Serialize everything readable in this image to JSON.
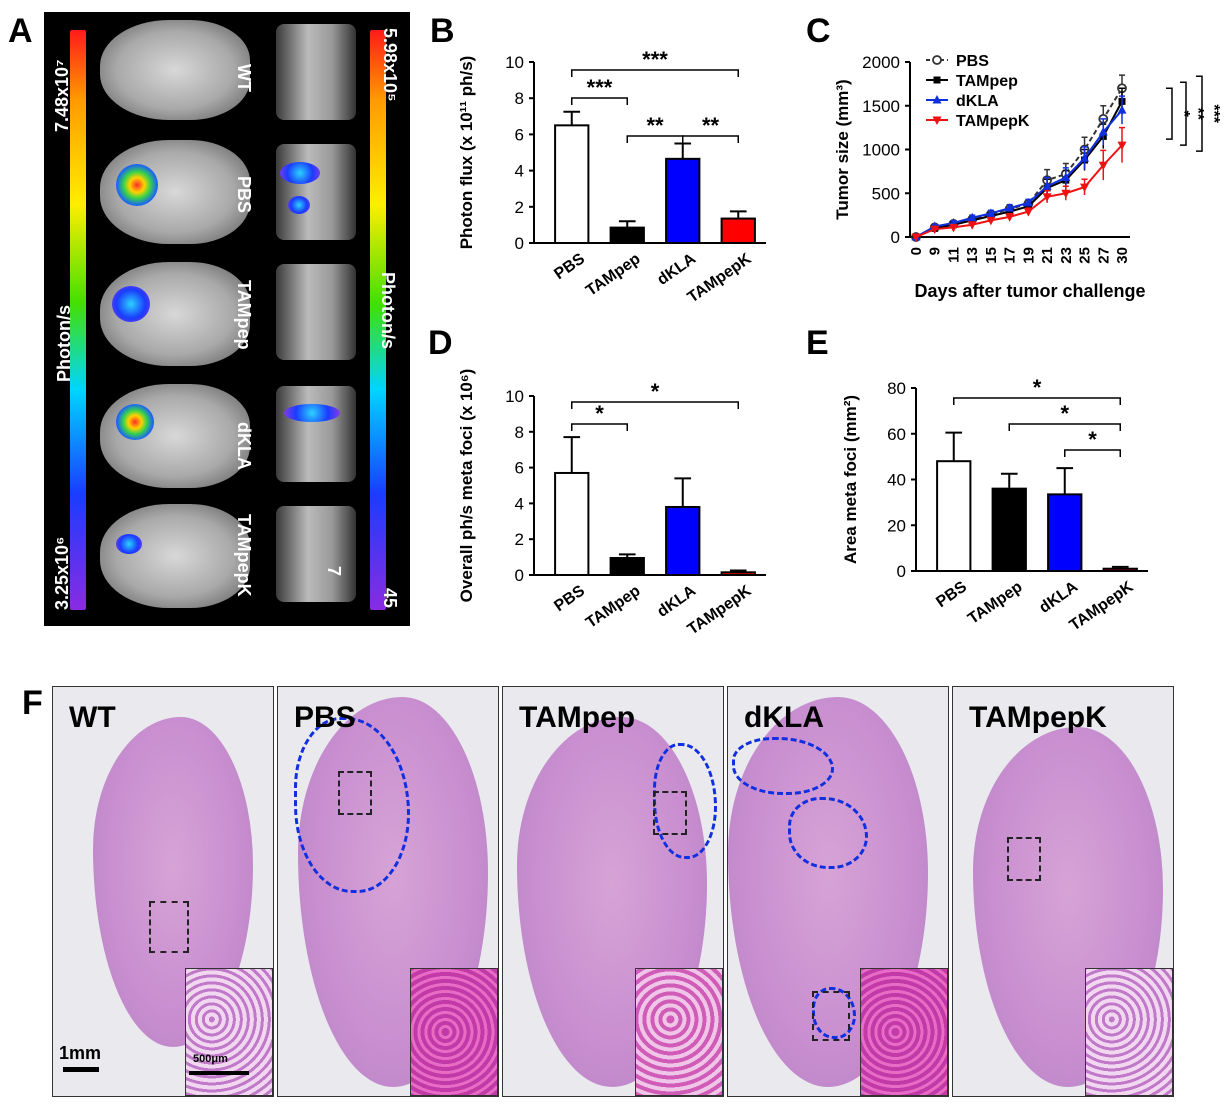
{
  "panel_labels": {
    "a": "A",
    "b": "B",
    "c": "C",
    "d": "D",
    "e": "E",
    "f": "F"
  },
  "panel_a": {
    "left_max": "7.48x10⁷",
    "left_min": "3.25x10⁶",
    "right_max": "5.98x10⁵",
    "right_min": "45",
    "left_unit": "Photon/s",
    "right_unit": "Photon/s",
    "rows": [
      "WT",
      "PBS",
      "TAMpep",
      "dKLA",
      "TAMpepK"
    ],
    "small_label": "7"
  },
  "colors": {
    "pbs": "#ffffff",
    "tampep": "#000000",
    "dkla": "#0000ff",
    "tampepk": "#ff0000"
  },
  "chart_data": [
    {
      "id": "B",
      "type": "bar",
      "categories": [
        "PBS",
        "TAMpep",
        "dKLA",
        "TAMpepK"
      ],
      "values": [
        6.5,
        0.85,
        4.65,
        1.35
      ],
      "errors": [
        0.75,
        0.35,
        0.85,
        0.4
      ],
      "ylabel": "Photon flux (x 10¹¹ ph/s)",
      "ylim": [
        0,
        10
      ],
      "yticks": [
        "0",
        "2",
        "4",
        "6",
        "8",
        "10"
      ],
      "significance": [
        {
          "from": 0,
          "to": 1,
          "label": "***"
        },
        {
          "from": 0,
          "to": 3,
          "label": "***"
        },
        {
          "from": 1,
          "to": 2,
          "label": "**"
        },
        {
          "from": 2,
          "to": 3,
          "label": "**"
        }
      ]
    },
    {
      "id": "C",
      "type": "line",
      "x": [
        "0",
        "9",
        "11",
        "13",
        "15",
        "17",
        "19",
        "21",
        "23",
        "25",
        "27",
        "30"
      ],
      "ylabel": "Tumor size (mm³)",
      "xlabel": "Days after tumor challenge",
      "ylim": [
        0,
        2000
      ],
      "yticks": [
        "0",
        "500",
        "1000",
        "1500",
        "2000"
      ],
      "series": [
        {
          "name": "PBS",
          "values": [
            0,
            110,
            150,
            200,
            260,
            320,
            380,
            650,
            720,
            1000,
            1350,
            1700
          ],
          "errors": [
            0,
            20,
            25,
            30,
            35,
            40,
            40,
            120,
            120,
            140,
            150,
            150
          ]
        },
        {
          "name": "TAMpep",
          "values": [
            0,
            100,
            140,
            190,
            240,
            290,
            350,
            560,
            650,
            880,
            1150,
            1550
          ],
          "errors": [
            0,
            20,
            25,
            30,
            35,
            40,
            40,
            100,
            110,
            120,
            140,
            150
          ]
        },
        {
          "name": "dKLA",
          "values": [
            0,
            120,
            160,
            220,
            270,
            330,
            390,
            580,
            680,
            900,
            1200,
            1450
          ],
          "errors": [
            0,
            20,
            25,
            30,
            35,
            40,
            40,
            100,
            110,
            130,
            150,
            160
          ]
        },
        {
          "name": "TAMpepK",
          "values": [
            0,
            90,
            110,
            140,
            190,
            230,
            290,
            460,
            500,
            570,
            820,
            1050
          ],
          "errors": [
            0,
            15,
            20,
            25,
            30,
            35,
            40,
            70,
            80,
            90,
            170,
            200
          ]
        }
      ],
      "significance": [
        "*",
        "**",
        "***"
      ]
    },
    {
      "id": "D",
      "type": "bar",
      "categories": [
        "PBS",
        "TAMpep",
        "dKLA",
        "TAMpepK"
      ],
      "values": [
        5.7,
        0.95,
        3.8,
        0.15
      ],
      "errors": [
        2.0,
        0.2,
        1.6,
        0.1
      ],
      "ylabel": "Overall ph/s meta foci (x 10⁶)",
      "ylim": [
        0,
        10
      ],
      "yticks": [
        "0",
        "2",
        "4",
        "6",
        "8",
        "10"
      ],
      "significance": [
        {
          "from": 0,
          "to": 1,
          "label": "*"
        },
        {
          "from": 0,
          "to": 3,
          "label": "*"
        }
      ]
    },
    {
      "id": "E",
      "type": "bar",
      "categories": [
        "PBS",
        "TAMpep",
        "dKLA",
        "TAMpepK"
      ],
      "values": [
        48,
        36,
        33.5,
        1
      ],
      "errors": [
        12.5,
        6.5,
        11.5,
        0.8
      ],
      "ylabel": "Area meta foci (mm²)",
      "ylim": [
        0,
        80
      ],
      "yticks": [
        "0",
        "20",
        "40",
        "60",
        "80"
      ],
      "significance": [
        {
          "from": 0,
          "to": 3,
          "label": "*"
        },
        {
          "from": 1,
          "to": 3,
          "label": "*"
        },
        {
          "from": 2,
          "to": 3,
          "label": "*"
        }
      ]
    }
  ],
  "panel_f": {
    "labels": [
      "WT",
      "PBS",
      "TAMpep",
      "dKLA",
      "TAMpepK"
    ],
    "scale_main": "1mm",
    "scale_inset": "500μm"
  }
}
